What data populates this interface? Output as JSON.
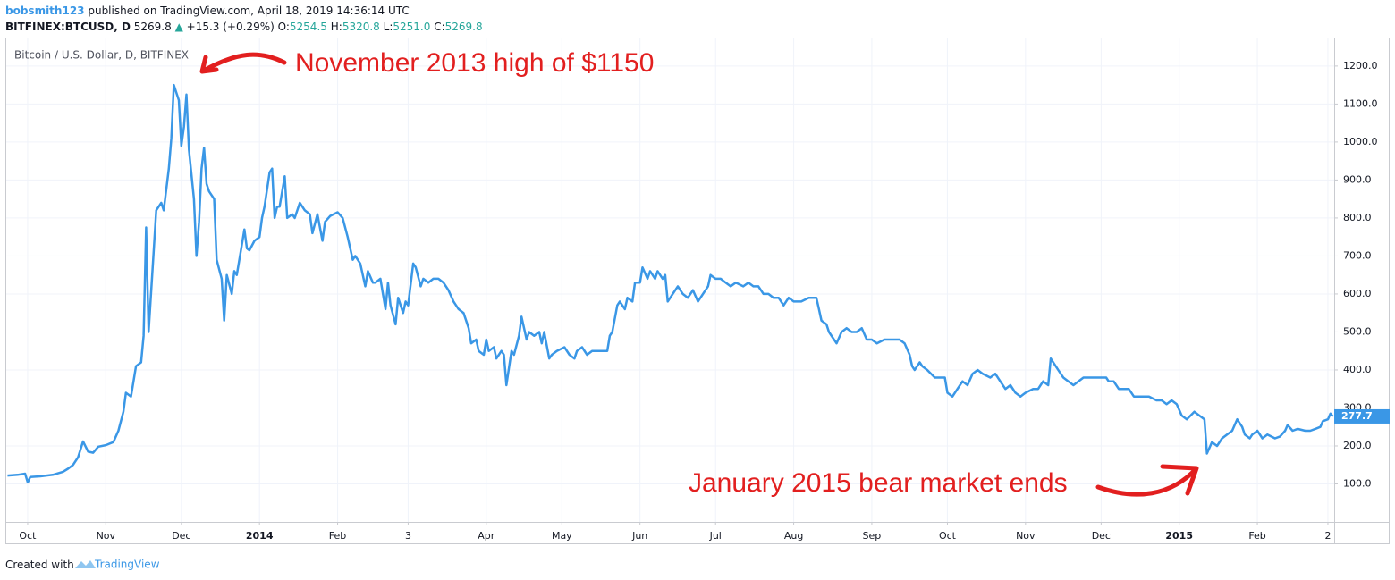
{
  "header": {
    "author": "bobsmith123",
    "published": "published on TradingView.com, April 18, 2019 14:36:14 UTC",
    "symbol": "BITFINEX:BTCUSD, D",
    "last": "5269.8",
    "arrow": "▲",
    "change": "+15.3 (+0.29%)",
    "open_label": "O:",
    "open": "5254.5",
    "high_label": "H:",
    "high": "5320.8",
    "low_label": "L:",
    "low": "5251.0",
    "close_label": "C:",
    "close": "5269.8"
  },
  "footer": {
    "created": "Created with",
    "brand": "TradingView"
  },
  "chart_data": {
    "type": "line",
    "title": "Bitcoin / U.S. Dollar, D, BITFINEX",
    "color": "#3a97e6",
    "grid": true,
    "last_price": 277.7,
    "annotations": [
      "November 2013 high of $1150",
      "January 2015 bear market ends"
    ],
    "xlim": [
      -8.5,
      518.5
    ],
    "ylim": [
      0,
      1275
    ],
    "xticks": [
      {
        "value": 0,
        "label": "Oct"
      },
      {
        "value": 31,
        "label": "Nov"
      },
      {
        "value": 61,
        "label": "Dec"
      },
      {
        "value": 92,
        "label": "2014"
      },
      {
        "value": 123,
        "label": "Feb"
      },
      {
        "value": 151,
        "label": "3"
      },
      {
        "value": 182,
        "label": "Apr"
      },
      {
        "value": 212,
        "label": "May"
      },
      {
        "value": 243,
        "label": "Jun"
      },
      {
        "value": 273,
        "label": "Jul"
      },
      {
        "value": 304,
        "label": "Aug"
      },
      {
        "value": 335,
        "label": "Sep"
      },
      {
        "value": 365,
        "label": "Oct"
      },
      {
        "value": 396,
        "label": "Nov"
      },
      {
        "value": 426,
        "label": "Dec"
      },
      {
        "value": 457,
        "label": "2015"
      },
      {
        "value": 488,
        "label": "Feb"
      },
      {
        "value": 516,
        "label": "2"
      }
    ],
    "yticks": [
      {
        "value": 100,
        "label": "100.0"
      },
      {
        "value": 200,
        "label": "200.0"
      },
      {
        "value": 300,
        "label": "300.0"
      },
      {
        "value": 400,
        "label": "400.0"
      },
      {
        "value": 500,
        "label": "500.0"
      },
      {
        "value": 600,
        "label": "600.0"
      },
      {
        "value": 700,
        "label": "700.0"
      },
      {
        "value": 800,
        "label": "800.0"
      },
      {
        "value": 900,
        "label": "900.0"
      },
      {
        "value": 1000,
        "label": "1000.0"
      },
      {
        "value": 1100,
        "label": "1100.0"
      },
      {
        "value": 1200,
        "label": "1200.0"
      }
    ],
    "x": [
      -8,
      -4,
      -1,
      0,
      1,
      5,
      10,
      14,
      16,
      18,
      20,
      22,
      24,
      26,
      28,
      31,
      34,
      36,
      38,
      39,
      41,
      43,
      45,
      46,
      47,
      48,
      50,
      51,
      53,
      54,
      56,
      57,
      58,
      60,
      61,
      62,
      63,
      64,
      66,
      67,
      68,
      69,
      70,
      71,
      72,
      74,
      75,
      77,
      78,
      79,
      81,
      82,
      83,
      85,
      86,
      87,
      88,
      90,
      92,
      93,
      94,
      96,
      97,
      98,
      99,
      100,
      102,
      103,
      105,
      106,
      108,
      110,
      112,
      113,
      115,
      117,
      118,
      120,
      123,
      125,
      127,
      129,
      130,
      132,
      134,
      135,
      137,
      138,
      140,
      142,
      143,
      144,
      146,
      147,
      149,
      150,
      151,
      153,
      154,
      156,
      157,
      159,
      161,
      163,
      165,
      167,
      169,
      171,
      173,
      175,
      176,
      178,
      179,
      181,
      182,
      183,
      185,
      186,
      188,
      189,
      190,
      192,
      193,
      195,
      196,
      198,
      199,
      201,
      203,
      204,
      205,
      207,
      208,
      210,
      213,
      215,
      217,
      218,
      220,
      222,
      224,
      227,
      230,
      231,
      232,
      234,
      235,
      237,
      238,
      240,
      241,
      243,
      244,
      246,
      247,
      249,
      250,
      252,
      253,
      254,
      256,
      258,
      260,
      262,
      264,
      266,
      268,
      270,
      271,
      273,
      275,
      277,
      279,
      281,
      284,
      286,
      288,
      290,
      292,
      294,
      296,
      298,
      300,
      302,
      304,
      307,
      310,
      313,
      314,
      315,
      317,
      318,
      320,
      321,
      323,
      325,
      327,
      329,
      331,
      333,
      335,
      337,
      340,
      343,
      346,
      348,
      350,
      351,
      352,
      354,
      355,
      357,
      360,
      362,
      364,
      365,
      367,
      369,
      371,
      373,
      375,
      377,
      379,
      382,
      384,
      386,
      388,
      390,
      392,
      394,
      396,
      399,
      401,
      403,
      405,
      406,
      408,
      409,
      411,
      413,
      415,
      417,
      419,
      422,
      425,
      428,
      429,
      431,
      433,
      435,
      437,
      439,
      441,
      443,
      445,
      448,
      450,
      452,
      454,
      456,
      458,
      460,
      463,
      465,
      467,
      468,
      470,
      472,
      474,
      476,
      478,
      480,
      482,
      483,
      485,
      486,
      488,
      490,
      492,
      495,
      497,
      499,
      500,
      502,
      504,
      507,
      509,
      511,
      513,
      514,
      516,
      517,
      518
    ],
    "values": [
      122,
      124,
      127,
      104,
      118,
      120,
      124,
      132,
      140,
      150,
      170,
      212,
      185,
      182,
      198,
      202,
      210,
      240,
      290,
      340,
      330,
      410,
      420,
      490,
      775,
      500,
      710,
      820,
      840,
      820,
      930,
      1010,
      1150,
      1110,
      990,
      1040,
      1125,
      980,
      850,
      700,
      790,
      930,
      985,
      890,
      870,
      850,
      690,
      640,
      530,
      650,
      600,
      660,
      650,
      730,
      770,
      720,
      715,
      740,
      750,
      800,
      830,
      920,
      930,
      800,
      830,
      830,
      910,
      800,
      810,
      800,
      840,
      820,
      810,
      760,
      810,
      740,
      790,
      805,
      815,
      800,
      750,
      690,
      700,
      680,
      620,
      660,
      630,
      630,
      640,
      560,
      630,
      570,
      520,
      590,
      550,
      580,
      570,
      680,
      670,
      620,
      640,
      630,
      640,
      640,
      630,
      610,
      580,
      560,
      550,
      510,
      470,
      480,
      450,
      440,
      480,
      450,
      460,
      430,
      450,
      440,
      360,
      450,
      440,
      490,
      540,
      480,
      500,
      490,
      500,
      470,
      500,
      430,
      440,
      450,
      460,
      440,
      430,
      450,
      460,
      440,
      450,
      450,
      450,
      490,
      500,
      570,
      580,
      560,
      590,
      580,
      630,
      630,
      670,
      640,
      660,
      640,
      660,
      640,
      650,
      580,
      600,
      620,
      600,
      590,
      610,
      580,
      600,
      620,
      650,
      640,
      640,
      630,
      620,
      630,
      620,
      630,
      620,
      620,
      600,
      600,
      590,
      590,
      570,
      590,
      580,
      580,
      590,
      590,
      560,
      530,
      520,
      500,
      480,
      470,
      500,
      510,
      500,
      500,
      510,
      480,
      480,
      470,
      480,
      480,
      480,
      470,
      440,
      410,
      400,
      420,
      410,
      400,
      380,
      380,
      380,
      340,
      330,
      350,
      370,
      360,
      390,
      400,
      390,
      380,
      390,
      370,
      350,
      360,
      340,
      330,
      340,
      350,
      350,
      370,
      360,
      430,
      410,
      400,
      380,
      370,
      360,
      370,
      380,
      380,
      380,
      380,
      370,
      370,
      350,
      350,
      350,
      330,
      330,
      330,
      330,
      320,
      320,
      310,
      320,
      310,
      280,
      270,
      290,
      280,
      270,
      180,
      210,
      200,
      220,
      230,
      240,
      270,
      250,
      230,
      220,
      230,
      240,
      220,
      230,
      220,
      225,
      240,
      255,
      240,
      245,
      240,
      240,
      245,
      250,
      265,
      270,
      285,
      277.7
    ]
  }
}
